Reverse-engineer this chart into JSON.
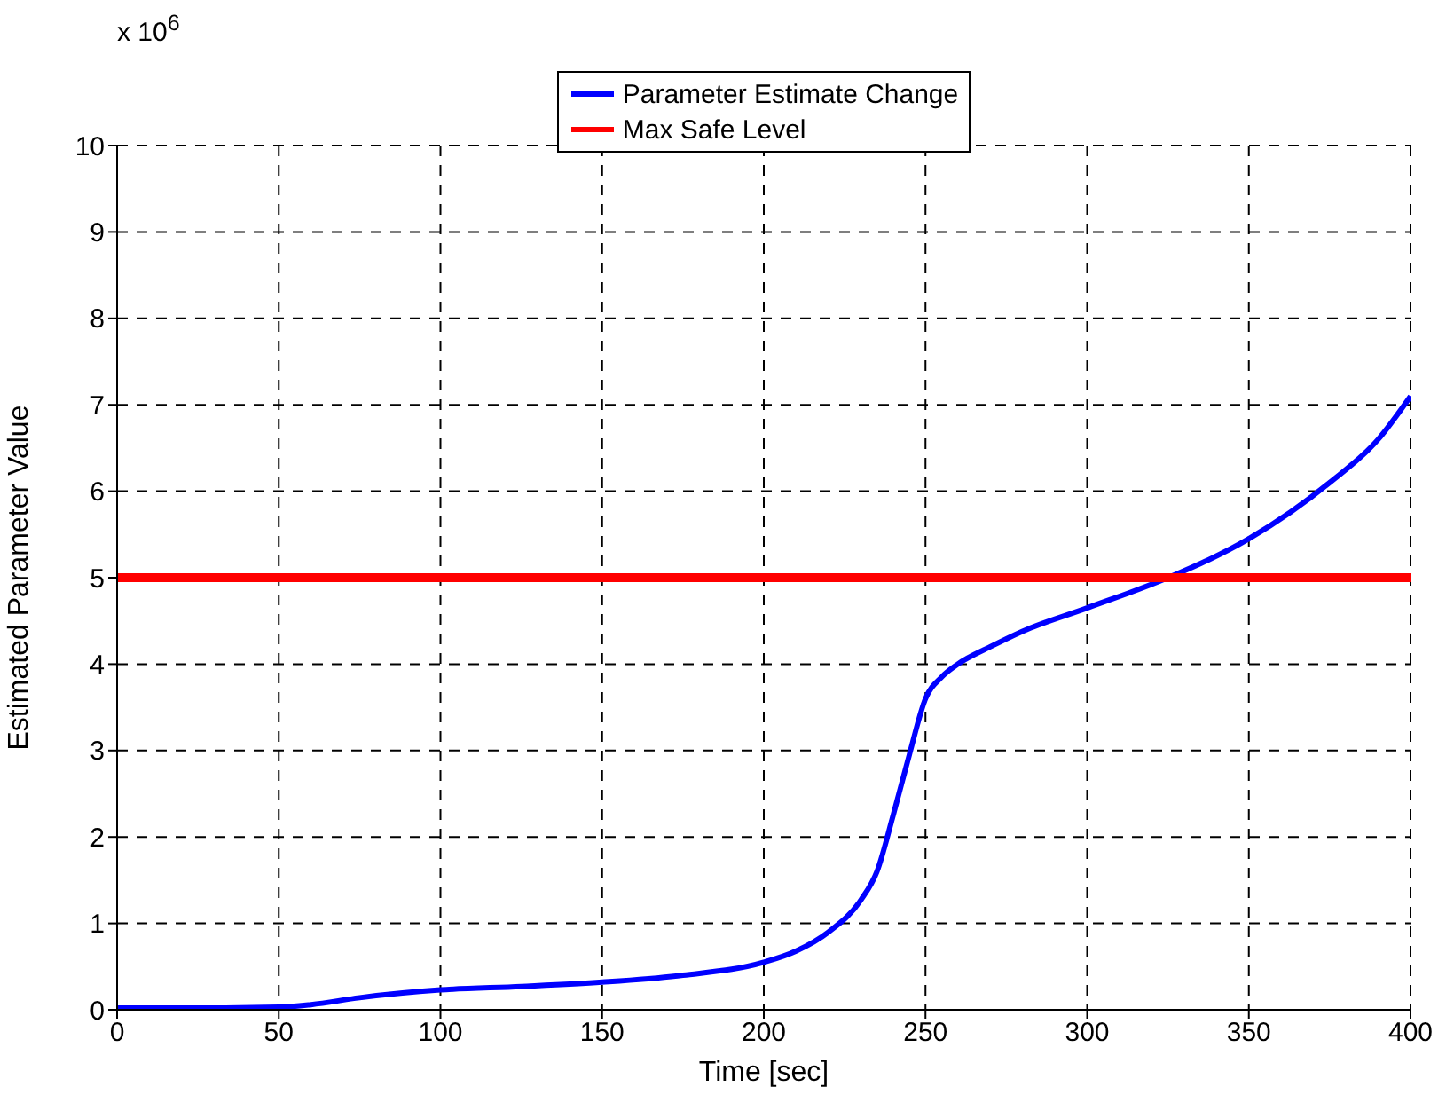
{
  "chart_data": {
    "type": "line",
    "xlabel": "Time [sec]",
    "ylabel": "Estimated Parameter Value",
    "annotations": [
      "x 10$^{6}$"
    ],
    "xlim": [
      0,
      400
    ],
    "xticks": [
      0,
      50,
      100,
      150,
      200,
      250,
      300,
      350,
      400
    ],
    "ylim": [
      0,
      10
    ],
    "yticks": [
      0,
      1,
      2,
      3,
      4,
      5,
      6,
      7,
      8,
      9,
      10
    ],
    "grid": true,
    "legend": "top",
    "line_style": "solid",
    "marker": "none",
    "series": [
      {
        "name": "Parameter Estimate Change",
        "color": "#0000ff",
        "x": [
          0,
          25,
          50,
          60,
          75,
          100,
          125,
          150,
          175,
          200,
          210,
          220,
          230,
          235,
          240,
          245,
          250,
          255,
          260,
          270,
          280,
          300,
          325,
          350,
          375,
          390,
          400
        ],
        "values": [
          0.02,
          0.02,
          0.03,
          0.06,
          0.14,
          0.23,
          0.27,
          0.32,
          0.4,
          0.55,
          0.68,
          0.9,
          1.27,
          1.6,
          2.25,
          2.95,
          3.6,
          3.85,
          4.0,
          4.2,
          4.38,
          4.65,
          5.0,
          5.45,
          6.1,
          6.6,
          7.1
        ]
      },
      {
        "name": "Max Safe Level",
        "color": "#ff0000",
        "x": [
          0,
          400
        ],
        "values": [
          5,
          5
        ]
      }
    ]
  }
}
